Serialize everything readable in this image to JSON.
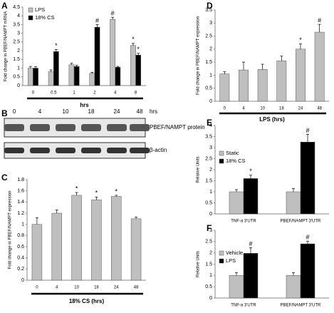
{
  "chart_data": [
    {
      "type": "bar",
      "panel": "A",
      "y_label": "Fold change in PBEF/NAMPT mRNA",
      "x_label": "hrs",
      "categories": [
        "0",
        "0.5",
        "1",
        "2",
        "4",
        "8"
      ],
      "series": [
        {
          "name": "LPS",
          "color": "#bfbfbf",
          "values": [
            1.0,
            0.8,
            1.2,
            0.7,
            3.8,
            2.3
          ],
          "errors": [
            0.1,
            0.1,
            0.08,
            0.06,
            0.12,
            0.12
          ],
          "markers": [
            null,
            null,
            null,
            null,
            "#",
            "*"
          ]
        },
        {
          "name": "18% CS",
          "color": "#000000",
          "values": [
            1.0,
            1.95,
            1.1,
            3.35,
            1.05,
            1.75
          ],
          "errors": [
            0.08,
            0.12,
            0.06,
            0.15,
            0.05,
            0.1
          ],
          "markers": [
            null,
            "*",
            null,
            "#",
            null,
            "*"
          ]
        }
      ],
      "ylim": [
        0,
        4.5
      ],
      "yticks": [
        0,
        0.5,
        1,
        1.5,
        2,
        2.5,
        3,
        3.5,
        4,
        4.5
      ],
      "legend": "upper left"
    },
    {
      "type": "blot",
      "panel": "B",
      "lanes": [
        "0",
        "4",
        "10",
        "18",
        "24",
        "48"
      ],
      "unit": "hrs",
      "rows": [
        "PBEF/NAMPT protein",
        "β-actin"
      ]
    },
    {
      "type": "bar",
      "panel": "C",
      "y_label": "Fold change in PBEF/NAMPT expression",
      "x_label": "18% CS (hrs)",
      "categories": [
        "0",
        "4",
        "10",
        "18",
        "24",
        "48"
      ],
      "color": "#bfbfbf",
      "values": [
        1.0,
        1.2,
        1.52,
        1.44,
        1.5,
        1.1
      ],
      "errors": [
        0.12,
        0.06,
        0.05,
        0.05,
        0.02,
        0.03
      ],
      "markers": [
        null,
        null,
        "*",
        "*",
        "*",
        null
      ],
      "ylim": [
        0,
        1.8
      ],
      "yticks": [
        0,
        0.2,
        0.4,
        0.6,
        0.8,
        1,
        1.2,
        1.4,
        1.6,
        1.8
      ]
    },
    {
      "type": "bar",
      "panel": "D",
      "y_label": "Fold change in PBEF/NAMPT expression",
      "x_label": "LPS (hrs)",
      "categories": [
        "0",
        "4",
        "10",
        "18",
        "24",
        "48"
      ],
      "color": "#bfbfbf",
      "values": [
        1.05,
        1.2,
        1.22,
        1.55,
        2.0,
        2.65
      ],
      "errors": [
        0.08,
        0.3,
        0.2,
        0.18,
        0.2,
        0.3
      ],
      "markers": [
        null,
        null,
        null,
        null,
        "*",
        "#"
      ],
      "ylim": [
        0,
        3.5
      ],
      "yticks": [
        0,
        0.5,
        1,
        1.5,
        2,
        2.5,
        3,
        3.5
      ]
    },
    {
      "type": "bar",
      "panel": "E",
      "y_label": "Relative Units",
      "categories": [
        "TNF-a 3'UTR",
        "PBEF/NAMPT 3'UTR"
      ],
      "series": [
        {
          "name": "Static",
          "color": "#bfbfbf",
          "values": [
            1.0,
            1.0
          ],
          "errors": [
            0.1,
            0.15
          ],
          "markers": [
            null,
            null
          ]
        },
        {
          "name": "18% CS",
          "color": "#000000",
          "values": [
            1.6,
            3.25
          ],
          "errors": [
            0.15,
            0.35
          ],
          "markers": [
            "*",
            "#"
          ]
        }
      ],
      "ylim": [
        0,
        4
      ],
      "yticks": [
        0,
        0.5,
        1,
        1.5,
        2,
        2.5,
        3,
        3.5,
        4
      ],
      "legend": "center left"
    },
    {
      "type": "bar",
      "panel": "F",
      "y_label": "Relative Units",
      "categories": [
        "TNF-a 3'UTR",
        "PBEF/NAMPT 3'UTR"
      ],
      "series": [
        {
          "name": "Vehicle",
          "color": "#bfbfbf",
          "values": [
            1.0,
            1.0
          ],
          "errors": [
            0.12,
            0.12
          ],
          "markers": [
            null,
            null
          ]
        },
        {
          "name": "LPS",
          "color": "#000000",
          "values": [
            1.98,
            2.4
          ],
          "errors": [
            0.25,
            0.12
          ],
          "markers": [
            "#",
            "#"
          ]
        }
      ],
      "ylim": [
        0,
        3
      ],
      "yticks": [
        0,
        0.5,
        1,
        1.5,
        2,
        2.5,
        3
      ],
      "legend": "center left"
    }
  ]
}
